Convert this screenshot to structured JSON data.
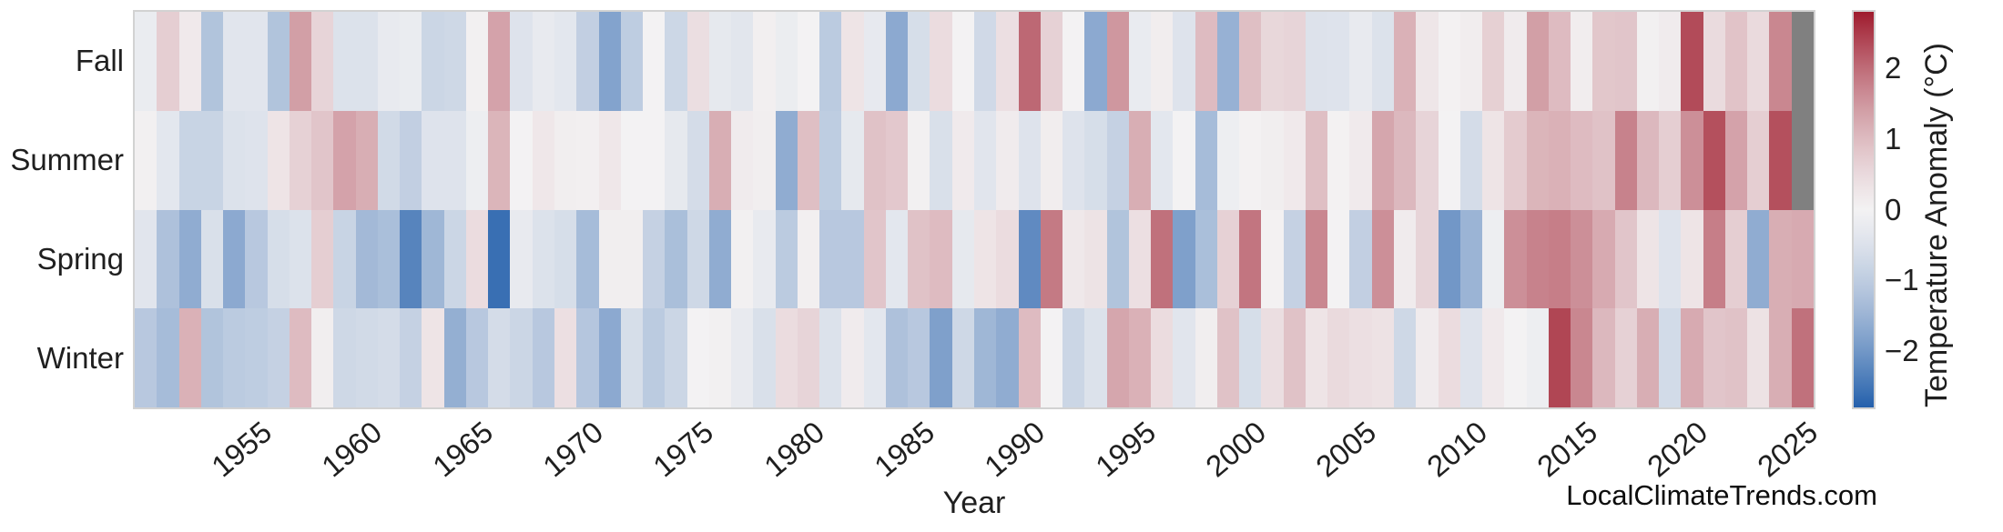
{
  "watermark": "LocalClimateTrends.com",
  "chart_data": {
    "type": "heatmap",
    "xlabel": "Year",
    "colorbar_label": "Temperature Anomaly (°C)",
    "rows": [
      "Fall",
      "Summer",
      "Spring",
      "Winter"
    ],
    "years": [
      1950,
      1951,
      1952,
      1953,
      1954,
      1955,
      1956,
      1957,
      1958,
      1959,
      1960,
      1961,
      1962,
      1963,
      1964,
      1965,
      1966,
      1967,
      1968,
      1969,
      1970,
      1971,
      1972,
      1973,
      1974,
      1975,
      1976,
      1977,
      1978,
      1979,
      1980,
      1981,
      1982,
      1983,
      1984,
      1985,
      1986,
      1987,
      1988,
      1989,
      1990,
      1991,
      1992,
      1993,
      1994,
      1995,
      1996,
      1997,
      1998,
      1999,
      2000,
      2001,
      2002,
      2003,
      2004,
      2005,
      2006,
      2007,
      2008,
      2009,
      2010,
      2011,
      2012,
      2013,
      2014,
      2015,
      2016,
      2017,
      2018,
      2019,
      2020,
      2021,
      2022,
      2023,
      2024,
      2025
    ],
    "x_tick_years": [
      1955,
      1960,
      1965,
      1970,
      1975,
      1980,
      1985,
      1990,
      1995,
      2000,
      2005,
      2010,
      2015,
      2020,
      2025
    ],
    "colorbar_ticks": [
      "2",
      "1",
      "0",
      "−1",
      "−2"
    ],
    "colorbar_tick_values": [
      2,
      1,
      0,
      -1,
      -2
    ],
    "vmin": -2.8,
    "vmax": 2.8,
    "grid": false,
    "legend_position": "right-colorbar",
    "colors": {
      "positive_end": "#9f1b2d",
      "negative_end": "#2460ac",
      "midpoint": "#f3f2f3",
      "missing": "#808080",
      "frame": "#d2d2d2",
      "text": "#1f1f1f"
    },
    "series": [
      {
        "name": "Fall",
        "values": [
          -0.2,
          0.7,
          0.2,
          -1.2,
          -0.4,
          -0.4,
          -1.2,
          1.4,
          0.6,
          -0.5,
          -0.5,
          -0.25,
          -0.2,
          -0.8,
          -0.75,
          0.05,
          1.35,
          -0.45,
          -0.25,
          -0.35,
          -0.95,
          -1.8,
          -1.0,
          0.0,
          -0.78,
          0.42,
          -0.3,
          -0.38,
          0.08,
          -0.18,
          0.0,
          -1.05,
          0.3,
          -0.28,
          -1.7,
          -0.6,
          0.45,
          0.0,
          -0.72,
          0.4,
          2.05,
          0.65,
          0.0,
          -1.7,
          1.5,
          -0.22,
          0.12,
          -0.45,
          1.0,
          -1.55,
          0.95,
          0.55,
          0.6,
          -0.48,
          -0.45,
          -0.25,
          -0.5,
          1.15,
          0.27,
          0.02,
          0.12,
          0.68,
          0.15,
          1.4,
          1.0,
          0.12,
          0.82,
          0.85,
          0.05,
          0.15,
          2.35,
          0.48,
          0.88,
          0.5,
          1.7,
          null
        ]
      },
      {
        "name": "Summer",
        "values": [
          0.05,
          -0.35,
          -0.85,
          -0.85,
          -0.5,
          -0.45,
          0.3,
          0.65,
          0.85,
          1.35,
          1.2,
          -0.7,
          -0.95,
          -0.45,
          -0.45,
          -0.15,
          1.1,
          0.0,
          0.25,
          0.1,
          0.08,
          0.25,
          0.0,
          0.0,
          -0.3,
          -0.65,
          1.2,
          0.15,
          0.1,
          -1.65,
          0.95,
          -1.0,
          -0.3,
          0.9,
          0.8,
          0.05,
          -0.55,
          0.18,
          -0.4,
          0.15,
          -0.45,
          0.12,
          -0.45,
          -0.6,
          -0.9,
          1.2,
          -0.35,
          0.0,
          -1.35,
          -0.15,
          0.02,
          0.1,
          0.2,
          0.95,
          0.03,
          0.18,
          1.3,
          1.05,
          0.6,
          0.0,
          -0.65,
          0.3,
          0.75,
          1.1,
          1.15,
          1.0,
          0.9,
          1.75,
          1.05,
          0.7,
          1.6,
          2.3,
          1.35,
          0.7,
          2.3,
          null
        ]
      },
      {
        "name": "Spring",
        "values": [
          -0.4,
          -1.25,
          -1.65,
          -0.55,
          -1.7,
          -1.1,
          -0.6,
          -0.5,
          0.7,
          -0.85,
          -1.4,
          -1.3,
          -2.3,
          -1.45,
          -0.8,
          0.45,
          -2.6,
          -0.25,
          -0.5,
          -0.6,
          -1.35,
          0.1,
          0.1,
          -0.9,
          -1.3,
          -0.75,
          -1.65,
          0.05,
          -0.25,
          -1.05,
          0.08,
          -1.1,
          -1.1,
          0.85,
          -0.35,
          0.9,
          1.0,
          -0.3,
          0.3,
          0.45,
          -2.2,
          1.85,
          0.22,
          0.32,
          -1.2,
          0.4,
          1.95,
          -1.85,
          -1.3,
          0.65,
          1.9,
          0.02,
          -0.9,
          1.7,
          0.0,
          -0.95,
          1.6,
          0.15,
          0.6,
          -2.0,
          -1.5,
          -0.15,
          1.6,
          1.75,
          1.8,
          1.6,
          1.25,
          0.85,
          0.3,
          -0.45,
          0.3,
          1.8,
          0.7,
          -1.65,
          1.2,
          1.25
        ]
      },
      {
        "name": "Winter",
        "values": [
          -1.1,
          -1.35,
          1.15,
          -1.2,
          -1.05,
          -1.0,
          -0.9,
          1.0,
          0.1,
          -0.75,
          -0.7,
          -0.65,
          -0.9,
          0.3,
          -1.6,
          -1.1,
          -0.65,
          -0.8,
          -1.1,
          0.4,
          -1.15,
          -1.7,
          -0.6,
          -1.05,
          -0.8,
          0.0,
          0.05,
          -0.25,
          -0.55,
          0.45,
          0.6,
          -0.5,
          0.15,
          -0.35,
          -1.25,
          -1.1,
          -1.85,
          -0.75,
          -1.45,
          -1.65,
          1.0,
          0.0,
          -0.8,
          -0.5,
          1.3,
          1.15,
          0.45,
          -0.4,
          0.1,
          0.9,
          -0.6,
          0.42,
          0.9,
          0.3,
          0.5,
          0.4,
          0.35,
          -0.75,
          0.15,
          0.45,
          -0.45,
          0.2,
          0.0,
          -0.15,
          2.4,
          1.7,
          1.05,
          0.65,
          1.2,
          -0.68,
          1.25,
          0.85,
          0.9,
          0.35,
          1.2,
          1.95
        ]
      }
    ]
  }
}
